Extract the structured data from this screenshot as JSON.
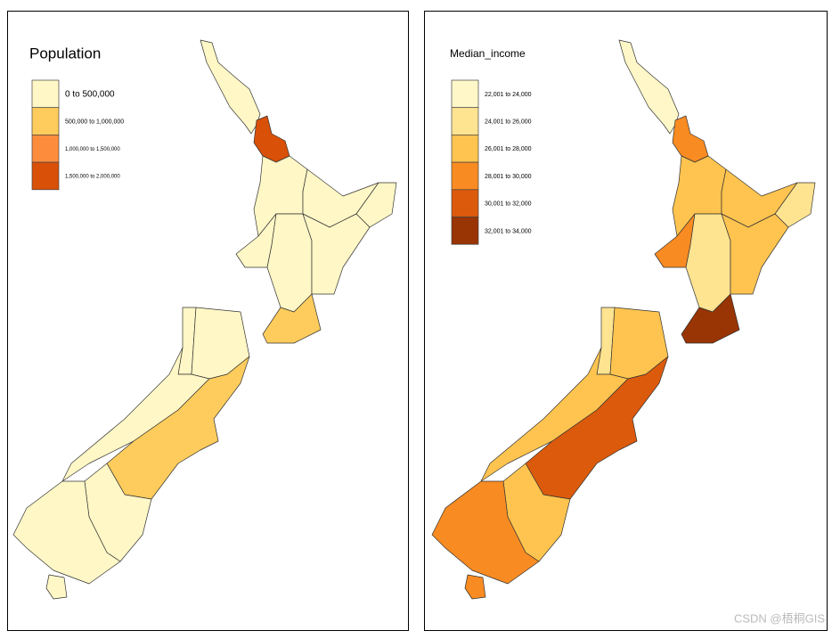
{
  "maps": [
    {
      "title": "Population",
      "legend": [
        {
          "label": "0 to 500,000",
          "color": "#fff7c6"
        },
        {
          "label": "500,000 to 1,000,000",
          "color": "#fecc5c"
        },
        {
          "label": "1,000,000 to 1,500,000",
          "color": "#fd8d3c"
        },
        {
          "label": "1,500,000 to 2,000,000",
          "color": "#d95008"
        }
      ]
    },
    {
      "title": "Median_income",
      "legend": [
        {
          "label": "22,001 to 24,000",
          "color": "#fff7c8"
        },
        {
          "label": "24,001 to 26,000",
          "color": "#fee391"
        },
        {
          "label": "26,001 to 28,000",
          "color": "#fec44f"
        },
        {
          "label": "28,001 to 30,000",
          "color": "#f88b22"
        },
        {
          "label": "30,001 to 32,000",
          "color": "#dc5a0c"
        },
        {
          "label": "32,001 to 34,000",
          "color": "#993404"
        }
      ]
    }
  ],
  "watermark": "CSDN @梧桐GIS"
}
